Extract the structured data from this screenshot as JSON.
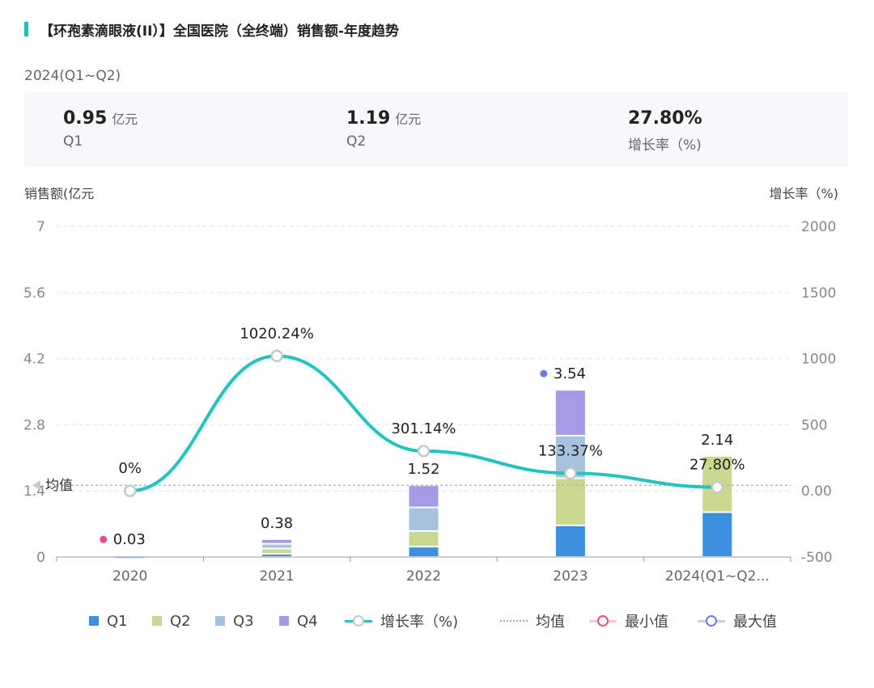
{
  "header": {
    "title": "【环孢素滴眼液(II）】全国医院（全终端）销售额-年度趋势",
    "period": "2024(Q1~Q2)"
  },
  "summary": [
    {
      "value": "0.95",
      "unit": "亿元",
      "label": "Q1"
    },
    {
      "value": "1.19",
      "unit": "亿元",
      "label": "Q2"
    },
    {
      "value": "27.80%",
      "unit": "",
      "label": "增长率（%)"
    }
  ],
  "colors": {
    "Q1": "#3d8fe0",
    "Q2": "#c8d88f",
    "Q3": "#a7c2dc",
    "Q4": "#a49be6",
    "growth": "#22c4c0",
    "min": "#ef4a86",
    "max": "#6f7be6",
    "accent": "#1fbfb8"
  },
  "chart_data": {
    "type": "bar",
    "stacked": true,
    "categories": [
      "2020",
      "2021",
      "2022",
      "2023",
      "2024(Q1~Q2..."
    ],
    "series": [
      {
        "name": "Q1",
        "values": [
          0.0075,
          0.07,
          0.22,
          0.67,
          0.95
        ]
      },
      {
        "name": "Q2",
        "values": [
          0.0075,
          0.11,
          0.33,
          1.0,
          1.19
        ]
      },
      {
        "name": "Q3",
        "values": [
          0.0075,
          0.1,
          0.5,
          0.9,
          null
        ]
      },
      {
        "name": "Q4",
        "values": [
          0.0075,
          0.1,
          0.47,
          0.97,
          null
        ]
      }
    ],
    "totals": [
      "0.03",
      "0.38",
      "1.52",
      "3.54",
      "2.14"
    ],
    "growth": {
      "name": "增长率（%)",
      "values": [
        0,
        1020.24,
        301.14,
        133.37,
        27.8
      ],
      "labels": [
        "0%",
        "1020.24%",
        "301.14%",
        "133.37%",
        "27.80%"
      ]
    },
    "average": {
      "value": 1.52,
      "label": "均值"
    },
    "min_index": 0,
    "max_index": 3,
    "ylabel_left": "销售额(亿元",
    "ylabel_right": "增长率（%)",
    "ylim_left": [
      0,
      7
    ],
    "ylim_right": [
      -500,
      2000
    ],
    "yticks_left": [
      "0",
      "1.4",
      "2.8",
      "4.2",
      "5.6",
      "7"
    ],
    "yticks_right": [
      "-500",
      "0.00",
      "500",
      "1000",
      "1500",
      "2000"
    ],
    "grid": true,
    "legend_position": "bottom",
    "legend": [
      "Q1",
      "Q2",
      "Q3",
      "Q4",
      "增长率（%)",
      "均值",
      "最小值",
      "最大值"
    ]
  }
}
